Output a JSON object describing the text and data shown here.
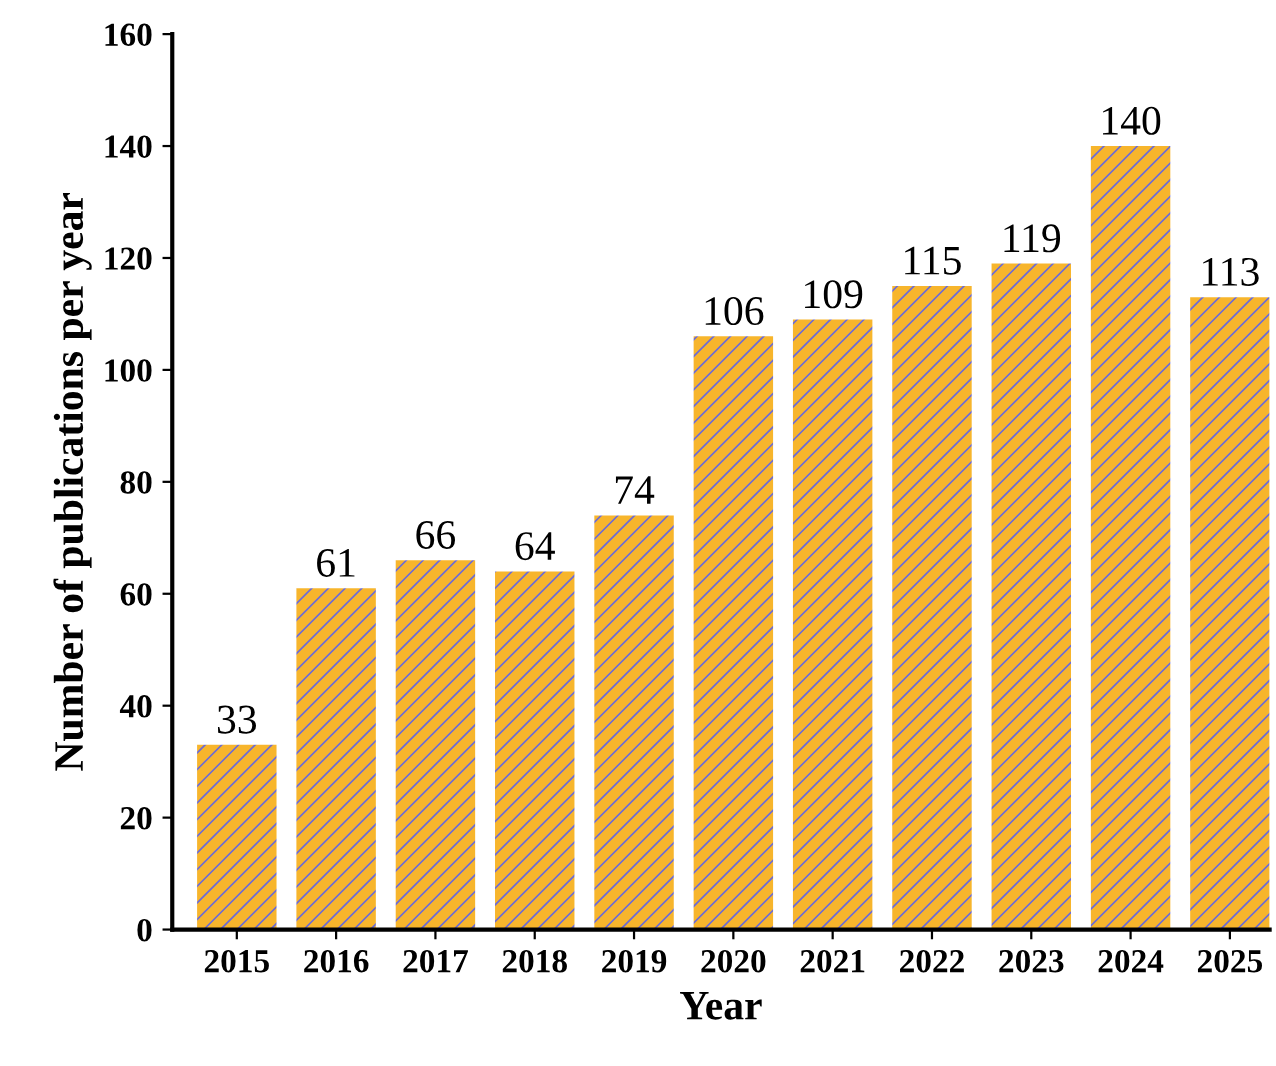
{
  "chart_data": {
    "type": "bar",
    "xlabel": "Year",
    "ylabel": "Number of publications per year",
    "categories": [
      "2015",
      "2016",
      "2017",
      "2018",
      "2019",
      "2020",
      "2021",
      "2022",
      "2023",
      "2024",
      "2025"
    ],
    "values": [
      33,
      61,
      66,
      64,
      74,
      106,
      109,
      115,
      119,
      140,
      113
    ],
    "color": "#f7b52c",
    "ylim": [
      0,
      160
    ],
    "yticks": [
      0,
      20,
      40,
      60,
      80,
      100,
      120,
      140,
      160
    ],
    "data_labels": true,
    "grid": false,
    "legend": false
  }
}
